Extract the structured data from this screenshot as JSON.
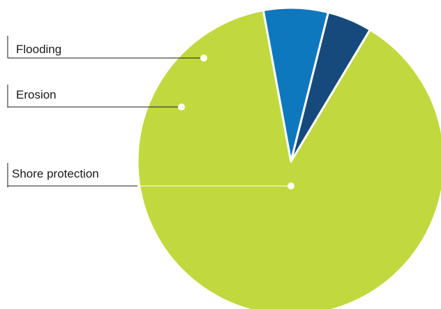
{
  "chart_data": {
    "type": "pie",
    "title": "",
    "slices": [
      {
        "label": "Shore protection",
        "value": 88.5,
        "color": "#c2d83f"
      },
      {
        "label": "Erosion",
        "value": 6.8,
        "color": "#0d78bd"
      },
      {
        "label": "Flooding",
        "value": 4.7,
        "color": "#174a7c"
      }
    ],
    "legend": "leader-line labels on left",
    "slice_border_color": "#ffffff",
    "label_line_color": "#1a1a1a"
  }
}
